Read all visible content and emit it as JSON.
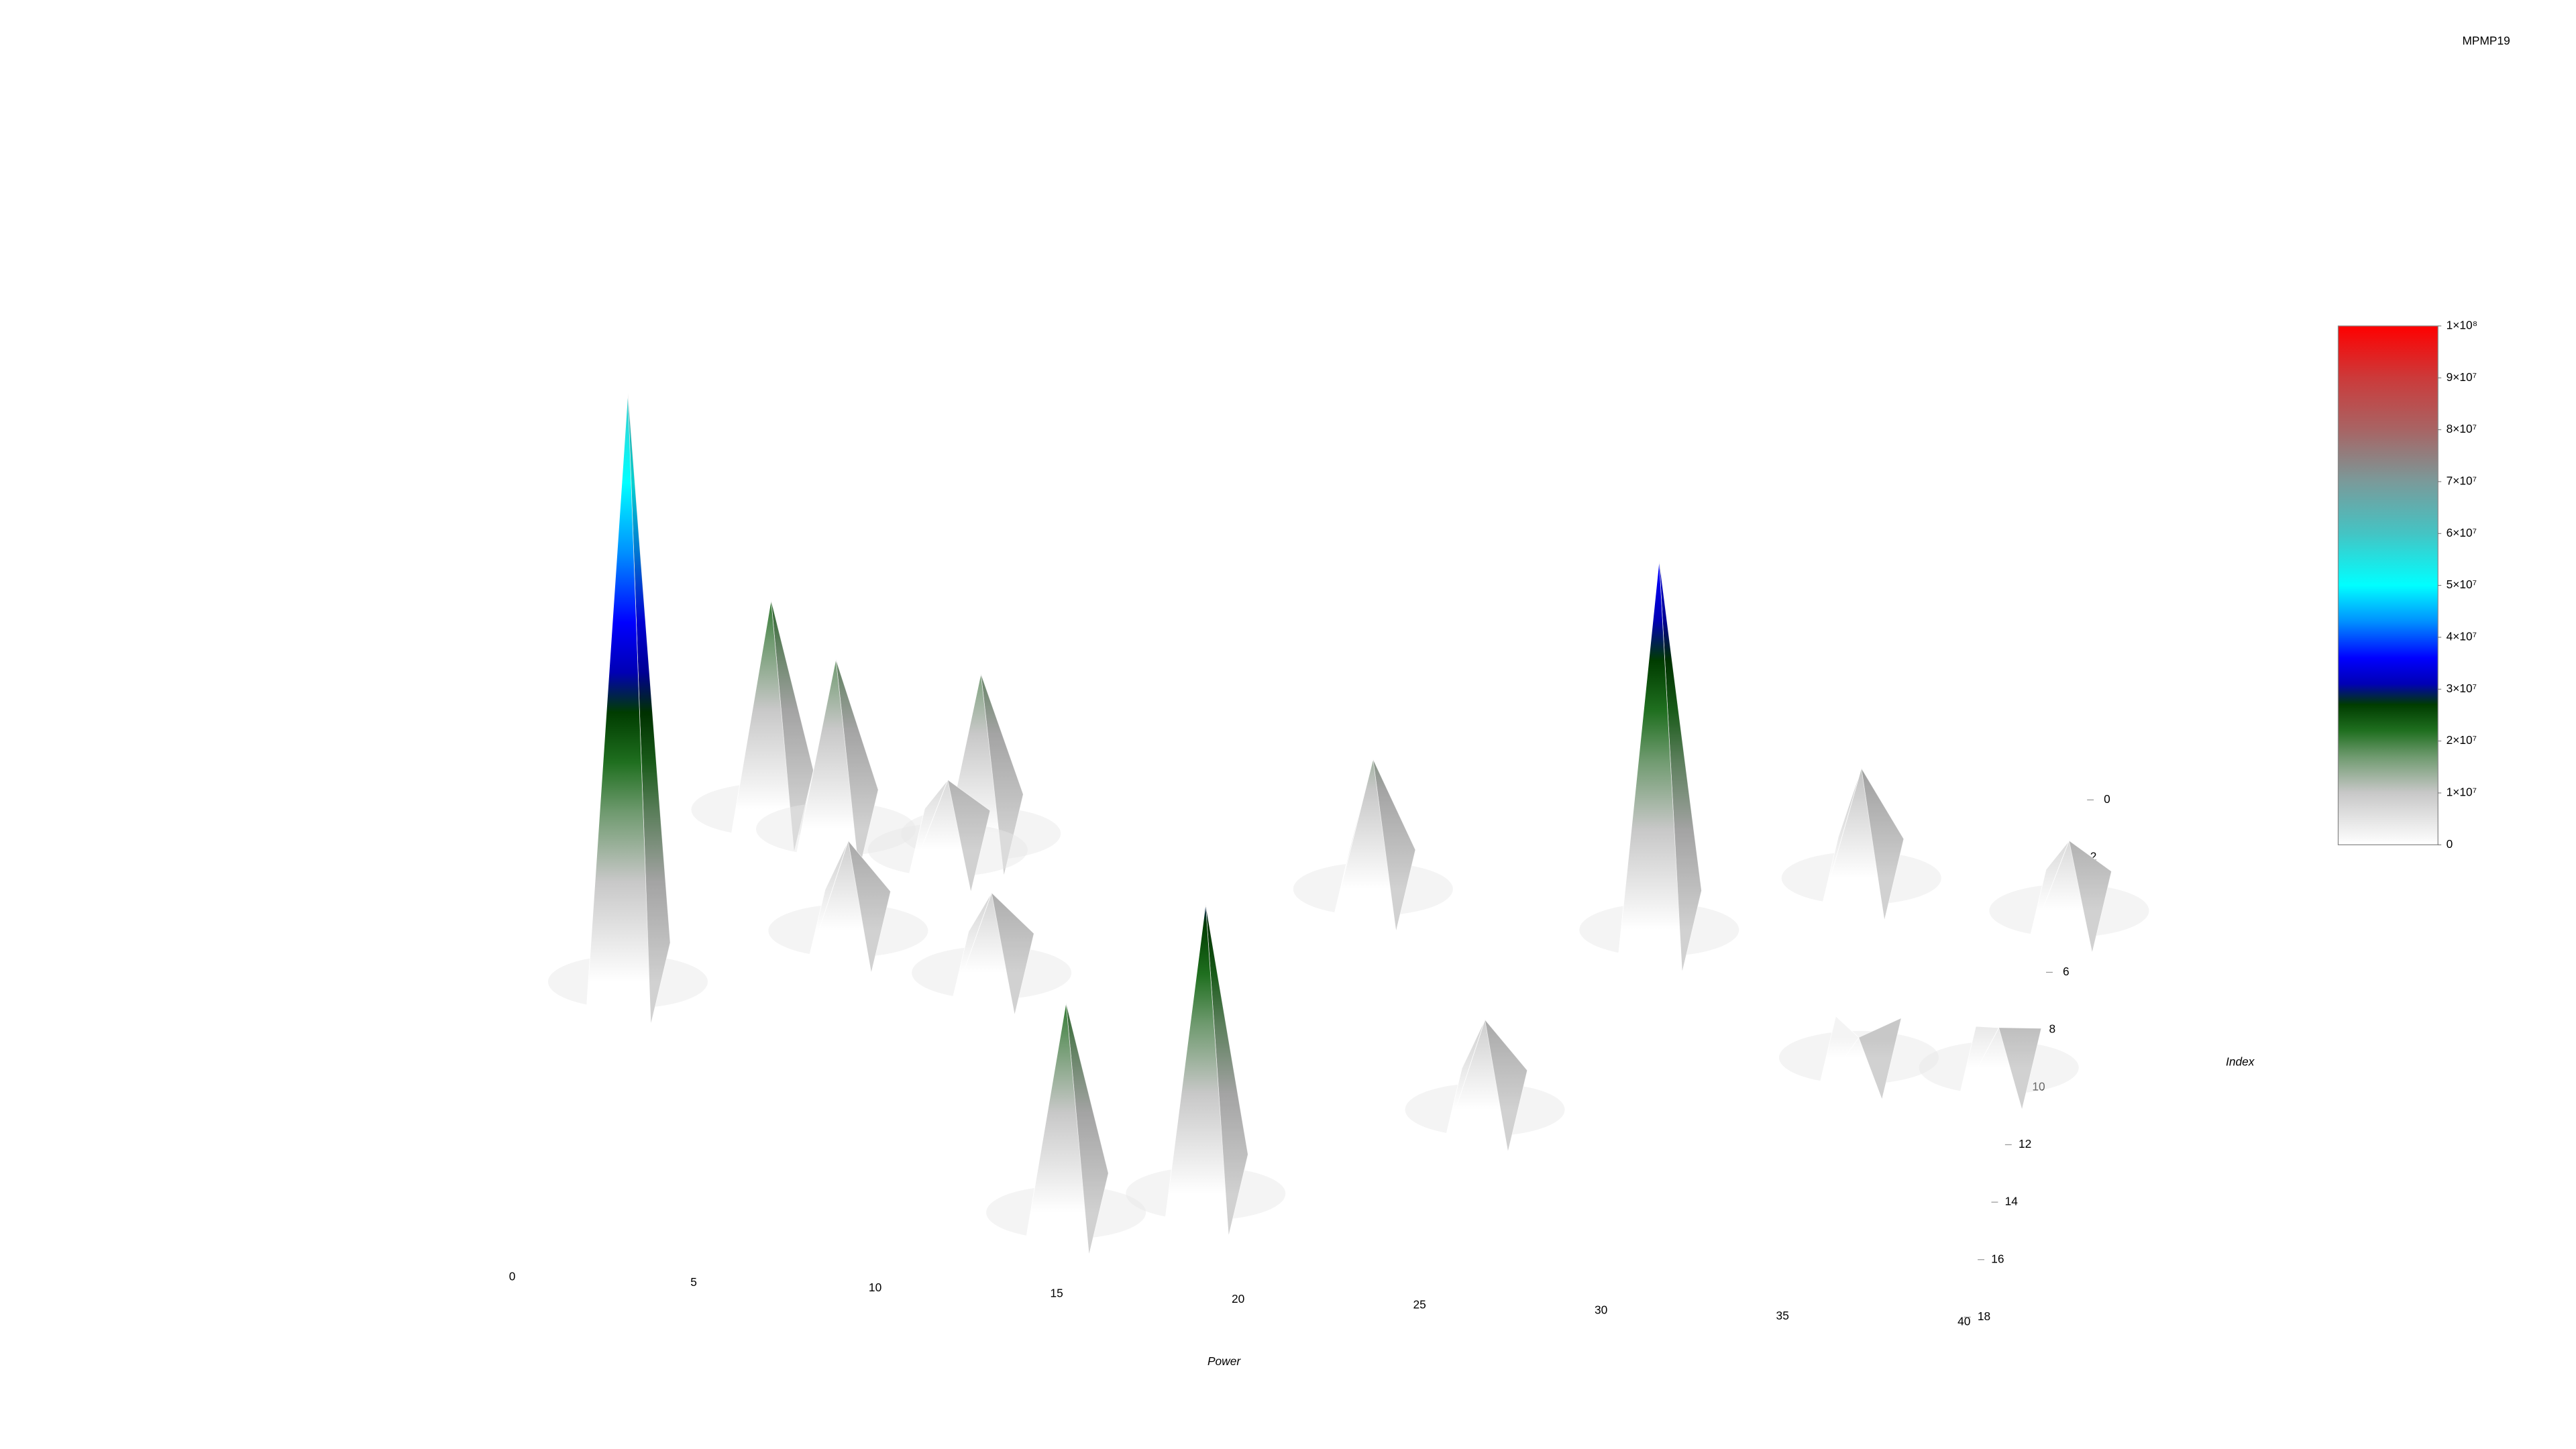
{
  "chart_data": {
    "type": "surface3d",
    "title": "MPMP19",
    "x_label": "Power",
    "y_label": "Index",
    "xlim": [
      0,
      40
    ],
    "ylim": [
      0,
      18
    ],
    "xticks": [
      0,
      5,
      10,
      15,
      20,
      25,
      30,
      35,
      40
    ],
    "yticks": [
      0,
      2,
      4,
      6,
      8,
      10,
      12,
      14,
      16,
      18
    ],
    "zlim": [
      0,
      100000000
    ],
    "colorbar_ticks": [
      0,
      {
        "value": 10000000,
        "label": "1×10⁷"
      },
      {
        "value": 20000000,
        "label": "2×10⁷"
      },
      {
        "value": 30000000,
        "label": "3×10⁷"
      },
      {
        "value": 40000000,
        "label": "4×10⁷"
      },
      {
        "value": 50000000,
        "label": "5×10⁷"
      },
      {
        "value": 60000000,
        "label": "6×10⁷"
      },
      {
        "value": 70000000,
        "label": "7×10⁷"
      },
      {
        "value": 80000000,
        "label": "8×10⁷"
      },
      {
        "value": 90000000,
        "label": "9×10⁷"
      },
      {
        "value": 100000000,
        "label": "1×10⁸"
      }
    ],
    "colorscale": [
      [
        0,
        "#ffffff"
      ],
      [
        10000000,
        "#c8c8c8"
      ],
      [
        17000000,
        "#6f9a6f"
      ],
      [
        22000000,
        "#1f6f1f"
      ],
      [
        27000000,
        "#003c00"
      ],
      [
        31000000,
        "#0000b4"
      ],
      [
        36000000,
        "#0000ff"
      ],
      [
        43000000,
        "#0090ff"
      ],
      [
        50000000,
        "#00ffff"
      ],
      [
        60000000,
        "#44c4c4"
      ],
      [
        70000000,
        "#7a9a9a"
      ],
      [
        80000000,
        "#a86464"
      ],
      [
        90000000,
        "#cc3a3a"
      ],
      [
        100000000,
        "#ff0000"
      ]
    ],
    "peaks": {
      "x": [
        1,
        3.8,
        5.7,
        9.7,
        6.7,
        10.9,
        14.5,
        18.2,
        20.8,
        28.9,
        34.1,
        40,
        25.3,
        35.2,
        39.1,
        8.9
      ],
      "index": [
        9.3,
        3.2,
        3.8,
        3.8,
        7.3,
        8.6,
        16.8,
        16,
        5.3,
        6.4,
        4.4,
        5.3,
        12.8,
        10.6,
        10.8,
        4.4
      ],
      "z": [
        59000000,
        21000000,
        17000000,
        16000000,
        9000000,
        8000000,
        21000000,
        29000000,
        13000000,
        37000000,
        11000000,
        7000000,
        9000000,
        2000000,
        4000000,
        7000000
      ]
    }
  }
}
